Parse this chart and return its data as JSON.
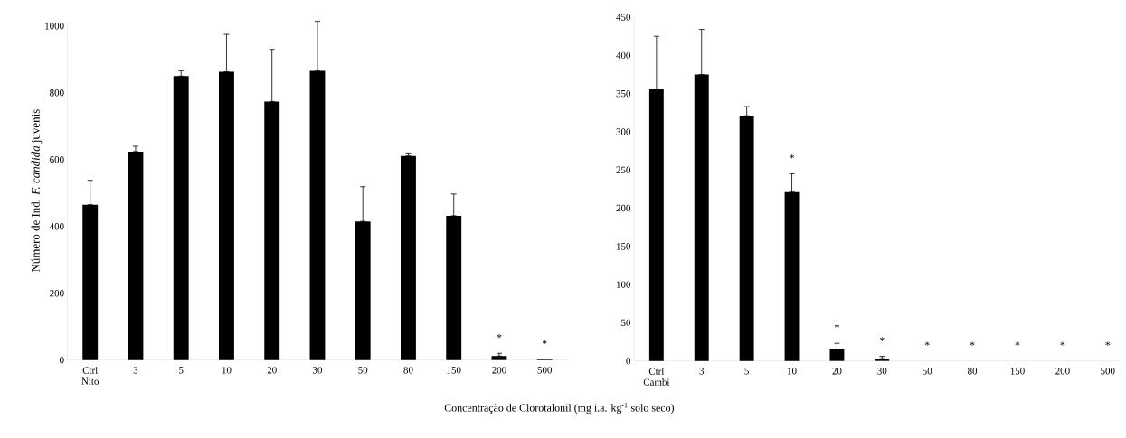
{
  "chart_data": [
    {
      "type": "bar",
      "ylabel": "Número de Ind. *F. candida* juvenis",
      "xlabel": "Concentração de Clorotalonil (mg i.a. kg$^{-1}$ solo seco)",
      "categories": [
        "Ctrl Nito",
        "3",
        "5",
        "10",
        "20",
        "30",
        "50",
        "80",
        "150",
        "200",
        "500"
      ],
      "values": [
        465,
        624,
        850,
        863,
        774,
        866,
        415,
        611,
        432,
        12,
        2
      ],
      "errors": [
        [
          465,
          538
        ],
        [
          624,
          640
        ],
        [
          850,
          866
        ],
        [
          863,
          975
        ],
        [
          774,
          930
        ],
        [
          866,
          1014
        ],
        [
          415,
          519
        ],
        [
          611,
          620
        ],
        [
          432,
          497
        ],
        [
          12,
          20
        ],
        null
      ],
      "color": "#000000",
      "ylim": [
        0,
        1014
      ],
      "yticks": [
        0,
        200,
        400,
        600,
        800,
        1000
      ],
      "annotations": [
        {
          "text": "*",
          "x": "200",
          "y": 20
        },
        {
          "text": "*",
          "x": "500",
          "y": 2
        }
      ]
    },
    {
      "type": "bar",
      "categories": [
        "Ctrl Cambi",
        "3",
        "5",
        "10",
        "20",
        "30",
        "50",
        "80",
        "150",
        "200",
        "500"
      ],
      "values": [
        356,
        375,
        321,
        221,
        15,
        3,
        0,
        0,
        0,
        0,
        0
      ],
      "errors": [
        [
          356,
          425
        ],
        [
          375,
          434
        ],
        [
          321,
          333
        ],
        [
          221,
          245
        ],
        [
          15,
          23
        ],
        [
          3,
          6
        ],
        null,
        null,
        null,
        null,
        null
      ],
      "color": "#000000",
      "ylim": [
        0,
        450
      ],
      "yticks": [
        0,
        50,
        100,
        150,
        200,
        250,
        300,
        350,
        400,
        450
      ],
      "annotations": [
        {
          "text": "*",
          "x": "10",
          "y": 245
        },
        {
          "text": "*",
          "x": "20",
          "y": 23
        },
        {
          "text": "*",
          "x": "30",
          "y": 6
        },
        {
          "text": "*",
          "x": "50",
          "y": 0
        },
        {
          "text": "*",
          "x": "80",
          "y": 0
        },
        {
          "text": "*",
          "x": "150",
          "y": 0
        },
        {
          "text": "*",
          "x": "200",
          "y": 0
        },
        {
          "text": "*",
          "x": "500",
          "y": 0
        }
      ]
    }
  ]
}
